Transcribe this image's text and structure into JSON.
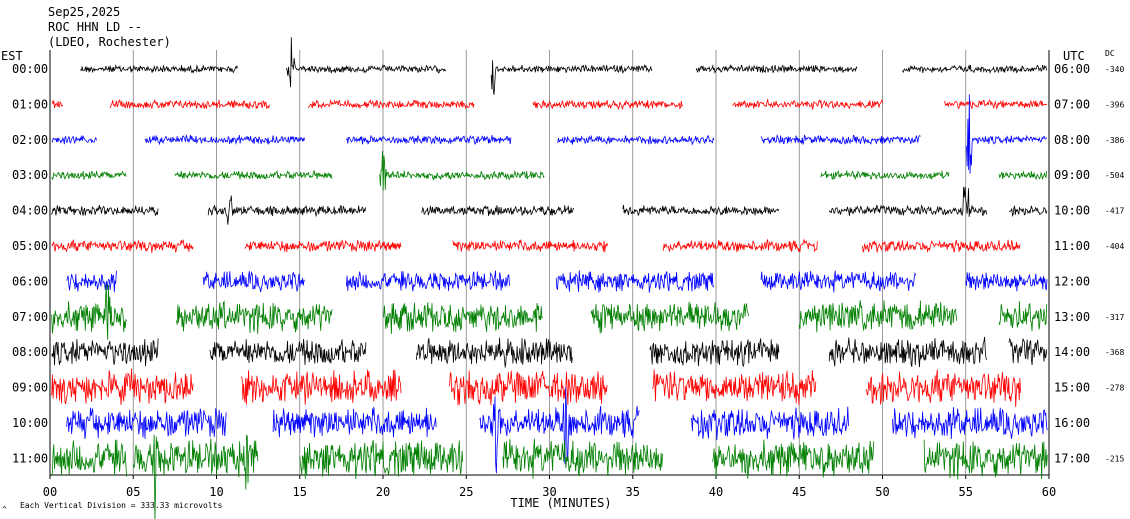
{
  "header": {
    "date": "Sep25,2025",
    "station": "ROC HHN LD --",
    "network": "(LDEO, Rochester)"
  },
  "labels": {
    "left_timezone": "EST",
    "right_timezone": "UTC",
    "dc_header": "DC",
    "x_axis_title": "TIME (MINUTES)",
    "scale_note": "Each Vertical Division = 333.33 microvolts",
    "corner_mark": "^"
  },
  "colors": {
    "black": "#000000",
    "red": "#ff0000",
    "blue": "#0000ff",
    "green": "#007f00",
    "grid": "#808080"
  },
  "chart_data": {
    "type": "line",
    "x_ticks": [
      "00",
      "05",
      "10",
      "15",
      "20",
      "25",
      "30",
      "35",
      "40",
      "45",
      "50",
      "55",
      "60"
    ],
    "xlim": [
      0,
      60
    ],
    "rows": [
      {
        "est": "00:00",
        "utc": "06:00",
        "dc": "-340",
        "color": "black",
        "segments": [
          [
            1.8,
            11.3
          ],
          [
            14.2,
            23.8
          ],
          [
            26.5,
            36.2
          ],
          [
            38.8,
            48.5
          ],
          [
            51.2,
            59.9
          ]
        ],
        "noise": 0.22,
        "spikes": [
          [
            14.5,
            1.1
          ],
          [
            26.6,
            1.2
          ]
        ]
      },
      {
        "est": "01:00",
        "utc": "07:00",
        "dc": "-396",
        "color": "red",
        "segments": [
          [
            0.1,
            0.8
          ],
          [
            3.6,
            13.2
          ],
          [
            15.5,
            25.5
          ],
          [
            29.0,
            38.0
          ],
          [
            41.0,
            50.0
          ],
          [
            53.7,
            59.9
          ]
        ],
        "noise": 0.25,
        "spikes": []
      },
      {
        "est": "02:00",
        "utc": "08:00",
        "dc": "-386",
        "color": "blue",
        "segments": [
          [
            0.1,
            2.8
          ],
          [
            5.7,
            15.3
          ],
          [
            17.8,
            27.7
          ],
          [
            30.5,
            39.9
          ],
          [
            42.7,
            52.3
          ],
          [
            55.0,
            59.9
          ]
        ],
        "noise": 0.25,
        "spikes": [
          [
            55.2,
            1.6
          ]
        ]
      },
      {
        "est": "03:00",
        "utc": "09:00",
        "dc": "-504",
        "color": "green",
        "segments": [
          [
            0.1,
            4.6
          ],
          [
            7.5,
            17.0
          ],
          [
            19.8,
            29.7
          ],
          [
            46.3,
            54.0
          ],
          [
            57.0,
            59.9
          ]
        ],
        "noise": 0.25,
        "spikes": [
          [
            20.0,
            1.2
          ],
          [
            55.2,
            1.3
          ]
        ]
      },
      {
        "est": "04:00",
        "utc": "10:00",
        "dc": "-417",
        "color": "black",
        "segments": [
          [
            0.1,
            6.5
          ],
          [
            9.5,
            19.0
          ],
          [
            22.3,
            31.5
          ],
          [
            34.4,
            43.8
          ],
          [
            46.8,
            56.3
          ],
          [
            57.6,
            59.9
          ]
        ],
        "noise": 0.3,
        "spikes": [
          [
            10.8,
            0.9
          ],
          [
            55.0,
            1.6
          ]
        ]
      },
      {
        "est": "05:00",
        "utc": "11:00",
        "dc": "-404",
        "color": "red",
        "segments": [
          [
            0.1,
            8.6
          ],
          [
            11.7,
            21.1
          ],
          [
            24.2,
            33.5
          ],
          [
            36.8,
            46.1
          ],
          [
            48.8,
            58.3
          ]
        ],
        "noise": 0.35,
        "spikes": []
      },
      {
        "est": "06:00",
        "utc": "12:00",
        "dc": "",
        "color": "blue",
        "segments": [
          [
            1.0,
            4.0
          ],
          [
            9.2,
            15.3
          ],
          [
            17.8,
            27.6
          ],
          [
            30.4,
            39.9
          ],
          [
            42.7,
            52.0
          ],
          [
            55.0,
            59.9
          ]
        ],
        "noise": 0.6,
        "spikes": []
      },
      {
        "est": "07:00",
        "utc": "13:00",
        "dc": "-317",
        "color": "green",
        "segments": [
          [
            0.1,
            4.6
          ],
          [
            7.6,
            17.0
          ],
          [
            20.0,
            29.6
          ],
          [
            32.5,
            42.0
          ],
          [
            45.0,
            54.5
          ],
          [
            57.0,
            59.9
          ]
        ],
        "noise": 0.9,
        "spikes": [
          [
            3.5,
            1.6
          ],
          [
            6.0,
            1.8
          ]
        ]
      },
      {
        "est": "08:00",
        "utc": "14:00",
        "dc": "-368",
        "color": "black",
        "segments": [
          [
            0.1,
            6.5
          ],
          [
            9.6,
            19.0
          ],
          [
            22.0,
            31.4
          ],
          [
            36.0,
            43.8
          ],
          [
            46.8,
            56.3
          ],
          [
            57.6,
            59.9
          ]
        ],
        "noise": 0.8,
        "spikes": []
      },
      {
        "est": "09:00",
        "utc": "15:00",
        "dc": "-278",
        "color": "red",
        "segments": [
          [
            0.1,
            8.6
          ],
          [
            11.5,
            21.1
          ],
          [
            24.0,
            33.5
          ],
          [
            36.2,
            46.0
          ],
          [
            49.0,
            58.3
          ]
        ],
        "noise": 1.0,
        "spikes": []
      },
      {
        "est": "10:00",
        "utc": "16:00",
        "dc": "",
        "color": "blue",
        "segments": [
          [
            1.0,
            10.6
          ],
          [
            13.4,
            23.2
          ],
          [
            25.8,
            35.4
          ],
          [
            38.5,
            48.0
          ],
          [
            50.6,
            59.9
          ]
        ],
        "noise": 0.9,
        "spikes": [
          [
            26.8,
            1.5
          ],
          [
            31.0,
            1.9
          ]
        ]
      },
      {
        "est": "11:00",
        "utc": "17:00",
        "dc": "-215",
        "color": "green",
        "segments": [
          [
            0.1,
            4.6
          ],
          [
            5.0,
            12.5
          ],
          [
            15.0,
            24.8
          ],
          [
            27.2,
            36.8
          ],
          [
            39.8,
            49.5
          ],
          [
            52.5,
            59.9
          ]
        ],
        "noise": 1.1,
        "spikes": [
          [
            6.3,
            1.7
          ],
          [
            11.8,
            1.6
          ]
        ]
      }
    ]
  }
}
